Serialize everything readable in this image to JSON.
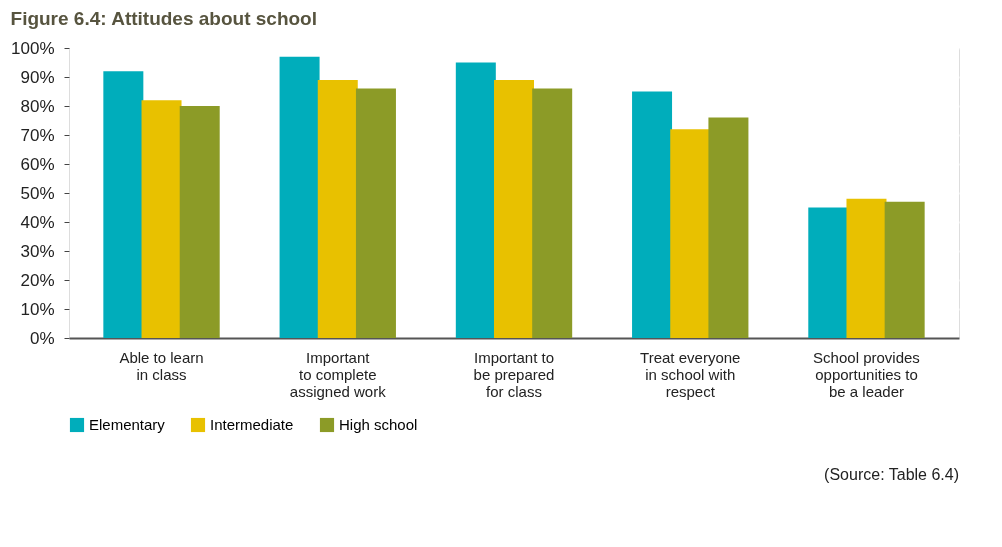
{
  "chart_data": {
    "type": "bar",
    "title": "Figure 6.4: Attitudes about school",
    "categories": [
      "Able to learn\nin class",
      "Important\nto complete\nassigned work",
      "Important to\nbe prepared\nfor class",
      "Treat everyone\nin school with\nrespect",
      "School provides\nopportunities to\nbe a leader"
    ],
    "series": [
      {
        "name": "Elementary",
        "color": "#00adbb",
        "values": [
          92,
          97,
          95,
          85,
          45
        ]
      },
      {
        "name": "Intermediate",
        "color": "#e8c100",
        "values": [
          82,
          89,
          89,
          72,
          48
        ]
      },
      {
        "name": "High school",
        "color": "#8c9b27",
        "values": [
          80,
          86,
          86,
          76,
          47
        ]
      }
    ],
    "ylim": [
      0,
      100
    ],
    "yticks": [
      {
        "value": 0,
        "label": "0%"
      },
      {
        "value": 10,
        "label": "10%"
      },
      {
        "value": 20,
        "label": "20%"
      },
      {
        "value": 30,
        "label": "30%"
      },
      {
        "value": 40,
        "label": "40%"
      },
      {
        "value": 50,
        "label": "50%"
      },
      {
        "value": 60,
        "label": "60%"
      },
      {
        "value": 70,
        "label": "70%"
      },
      {
        "value": 80,
        "label": "80%"
      },
      {
        "value": 90,
        "label": "90%"
      },
      {
        "value": 100,
        "label": "100%"
      }
    ],
    "grid": "y",
    "legend": "bottom",
    "annotations": [
      "(Source: Table 6.4)"
    ]
  }
}
